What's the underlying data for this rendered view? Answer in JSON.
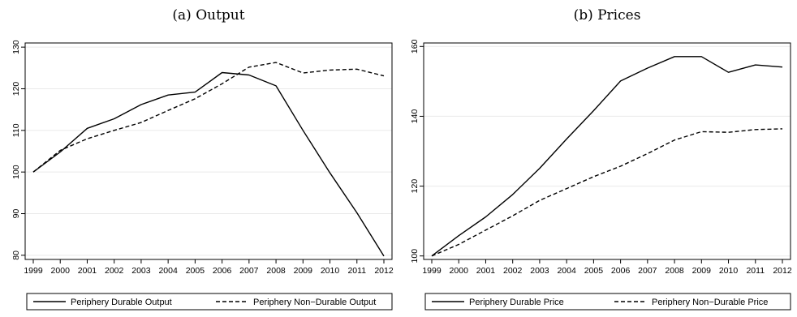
{
  "chart_data": [
    {
      "type": "line",
      "title": "(a) Output",
      "xlabel": "",
      "ylabel": "",
      "x": [
        1999,
        2000,
        2001,
        2002,
        2003,
        2004,
        2005,
        2006,
        2007,
        2008,
        2009,
        2010,
        2011,
        2012
      ],
      "xticks": [
        "1999",
        "2000",
        "2001",
        "2002",
        "2003",
        "2004",
        "2005",
        "2006",
        "2007",
        "2008",
        "2009",
        "2010",
        "2011",
        "2012"
      ],
      "ylim": [
        79,
        131
      ],
      "yticks": [
        80,
        90,
        100,
        110,
        120,
        130
      ],
      "grid": true,
      "legend_position": "bottom",
      "series": [
        {
          "name": "Periphery Durable Output",
          "style": "solid",
          "values": [
            100,
            104.8,
            110.5,
            112.8,
            116.2,
            118.5,
            119.2,
            123.9,
            123.3,
            120.7,
            110,
            99.8,
            90.2,
            79.8
          ]
        },
        {
          "name": "Periphery Non−Durable Output",
          "style": "dashed",
          "values": [
            100,
            105.2,
            108,
            110,
            111.9,
            114.8,
            117.6,
            121.2,
            125.2,
            126.3,
            123.8,
            124.5,
            124.7,
            123.1
          ]
        }
      ]
    },
    {
      "type": "line",
      "title": "(b) Prices",
      "xlabel": "",
      "ylabel": "",
      "x": [
        1999,
        2000,
        2001,
        2002,
        2003,
        2004,
        2005,
        2006,
        2007,
        2008,
        2009,
        2010,
        2011,
        2012
      ],
      "xticks": [
        "1999",
        "2000",
        "2001",
        "2002",
        "2003",
        "2004",
        "2005",
        "2006",
        "2007",
        "2008",
        "2009",
        "2010",
        "2011",
        "2012"
      ],
      "ylim": [
        99,
        161
      ],
      "yticks": [
        100,
        120,
        140,
        160
      ],
      "grid": true,
      "legend_position": "bottom",
      "series": [
        {
          "name": "Periphery Durable Price",
          "style": "solid",
          "values": [
            100,
            105.8,
            111.2,
            117.6,
            125.1,
            133.5,
            141.6,
            150.1,
            153.8,
            157.1,
            157.1,
            152.6,
            154.7,
            154.1
          ]
        },
        {
          "name": "Periphery Non−Durable Price",
          "style": "dashed",
          "values": [
            100,
            103.3,
            107.4,
            111.5,
            115.9,
            119.3,
            122.7,
            125.7,
            129.3,
            133.2,
            135.6,
            135.4,
            136.2,
            136.4
          ]
        }
      ]
    }
  ],
  "colors": {
    "line": "#000000",
    "grid": "#eaeaea",
    "axis": "#000000",
    "frame": "#000000"
  }
}
